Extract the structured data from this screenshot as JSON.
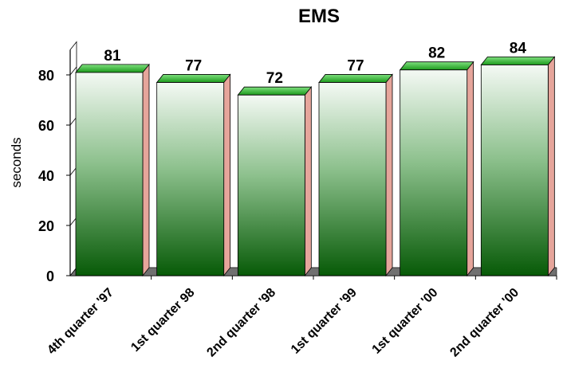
{
  "chart_data": {
    "type": "bar",
    "title": "EMS",
    "ylabel": "seconds",
    "xlabel": "",
    "categories": [
      "4th quarter '97",
      "1st quarter 98",
      "2nd quarter '98",
      "1st quarter '99",
      "1st quarter '00",
      "2nd quarter '00"
    ],
    "values": [
      81,
      77,
      72,
      77,
      82,
      84
    ],
    "ylim": [
      0,
      90
    ],
    "yticks": [
      0,
      20,
      40,
      60,
      80
    ],
    "grid": false,
    "legend": "none",
    "style": "3d"
  },
  "colors": {
    "bar_top": "#f2f8f2",
    "bar_bottom": "#0a5e0a",
    "bar_cap": "#3cb53c",
    "bar_side": "#e6a59b",
    "floor": "#707070"
  }
}
